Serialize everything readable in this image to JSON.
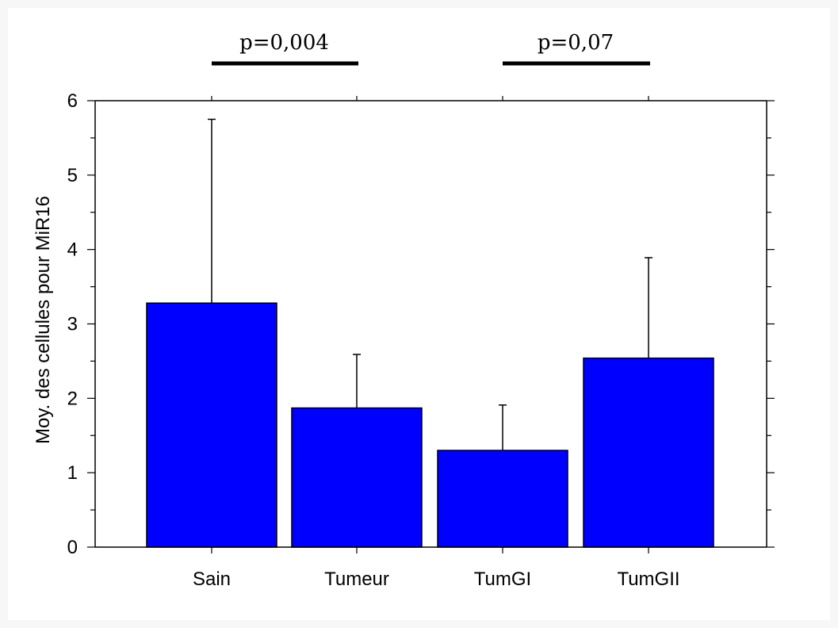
{
  "chart_data": {
    "type": "bar",
    "categories": [
      "Sain",
      "Tumeur",
      "TumGI",
      "TumGII"
    ],
    "values": [
      3.28,
      1.87,
      1.3,
      2.54
    ],
    "error_upper": [
      5.75,
      2.59,
      1.91,
      3.89
    ],
    "title": "",
    "xlabel": "",
    "ylabel": "Moy. des cellules pour MiR16",
    "ylim": [
      0,
      6
    ],
    "yticks": [
      0,
      1,
      2,
      3,
      4,
      5,
      6
    ],
    "grid": false,
    "bar_color": "#0000ff",
    "annotations": [
      {
        "text": "p=0,004",
        "from": "Sain",
        "to": "Tumeur"
      },
      {
        "text": "p=0,07",
        "from": "TumGI",
        "to": "TumGII"
      }
    ]
  }
}
